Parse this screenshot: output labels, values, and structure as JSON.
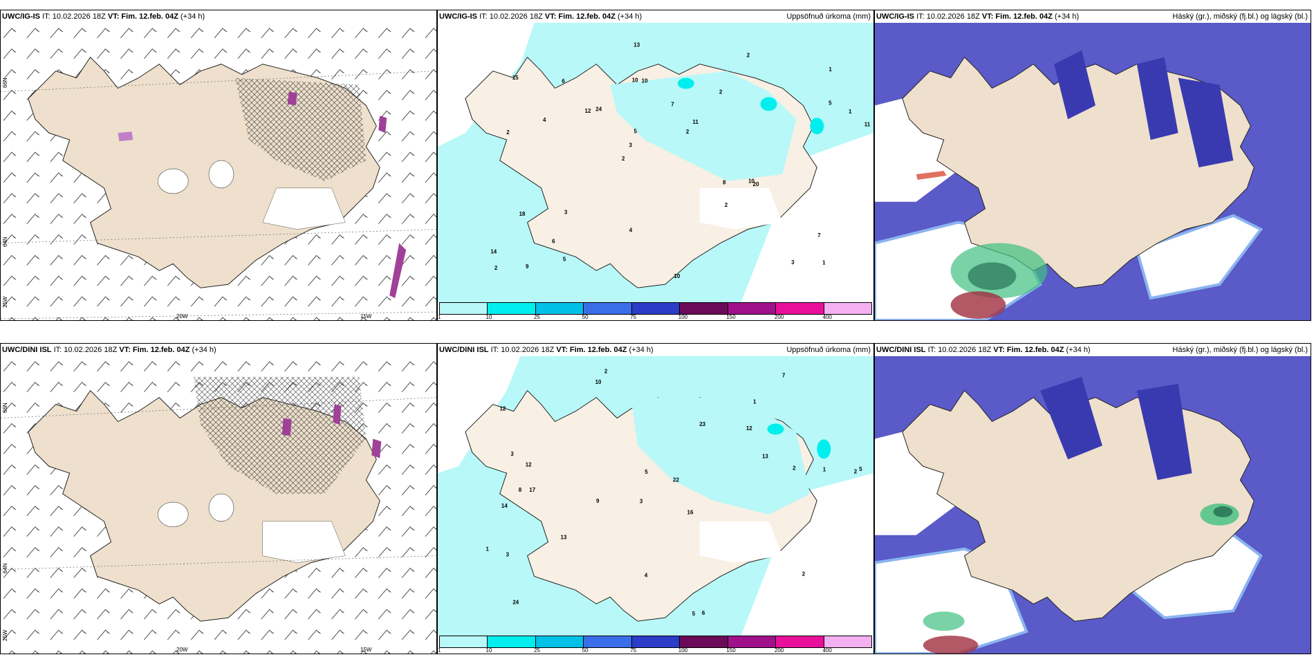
{
  "panels": {
    "top_left": {
      "model": "UWC/IG-IS",
      "it": "IT: 10.02.2026 18Z",
      "vt": "VT: Fim. 12.feb. 04Z",
      "lead": "(+34 h)"
    },
    "top_mid": {
      "model": "UWC/IG-IS",
      "it": "IT: 10.02.2026 18Z",
      "vt": "VT: Fim. 12.feb. 04Z",
      "lead": "(+34 h)",
      "field": "Uppsöfnuð úrkoma (mm)"
    },
    "top_right": {
      "model": "UWC/IG-IS",
      "it": "IT: 10.02.2026 18Z",
      "vt": "VT: Fim. 12.feb. 04Z",
      "lead": "(+34 h)",
      "field": "Háský (gr.), miðský (fj.bl.) og lágský (bl.)"
    },
    "bot_left": {
      "model": "UWC/DINI ISL",
      "it": "IT: 10.02.2026 18Z",
      "vt": "VT: Fim. 12.feb. 04Z",
      "lead": "(+34 h)"
    },
    "bot_mid": {
      "model": "UWC/DINI ISL",
      "it": "IT: 10.02.2026 18Z",
      "vt": "VT: Fim. 12.feb. 04Z",
      "lead": "(+34 h)",
      "field": "Uppsöfnuð úrkoma (mm)"
    },
    "bot_right": {
      "model": "UWC/DINI ISL",
      "it": "IT: 10.02.2026 18Z",
      "vt": "VT: Fim. 12.feb. 04Z",
      "lead": "(+34 h)",
      "field": "Háský (gr.), miðský (fj.bl.) og lágský (bl.)"
    }
  },
  "axis_labels": {
    "lat66": "66N",
    "lat64": "64N",
    "lon25": "25W",
    "lon20": "20W",
    "lon15": "15W",
    "lat65": "65N"
  },
  "colorbar": {
    "labels": [
      "1",
      "10",
      "25",
      "50",
      "75",
      "100",
      "150",
      "200",
      "400"
    ],
    "colors": [
      "#b8f8f8",
      "#00eeee",
      "#00c0e8",
      "#3a6ee8",
      "#2a3cc8",
      "#6a0a58",
      "#a0108a",
      "#e8109a",
      "#f4b0f0"
    ]
  },
  "precip_top": [
    "1",
    "2",
    "1",
    "2",
    "2",
    "9",
    "10",
    "7",
    "18",
    "24",
    "14",
    "6",
    "10",
    "11",
    "20",
    "15",
    "13",
    "11",
    "8",
    "5",
    "3",
    "4",
    "5",
    "6",
    "2",
    "3",
    "3",
    "7",
    "10",
    "10",
    "12",
    "4",
    "2",
    "5",
    "1",
    "2",
    "2"
  ],
  "precip_bot": [
    "2",
    "1",
    "2",
    "3",
    "16",
    "17",
    "12",
    "12",
    "14",
    "23",
    "22",
    "24",
    "10",
    "9",
    "5",
    "6",
    "4",
    "7",
    "13",
    "13",
    "12",
    "8",
    "5",
    "1",
    "1",
    "3",
    "5",
    "2",
    "2",
    "3"
  ],
  "colors": {
    "land": "#eee0cc",
    "precip_land": "#f8f0e4",
    "cloud_low": "#5a5ac8",
    "cloud_mid": "#3a3ab0",
    "cloud_edge": "#8ab4f0",
    "high_cloud": "#40c080"
  }
}
